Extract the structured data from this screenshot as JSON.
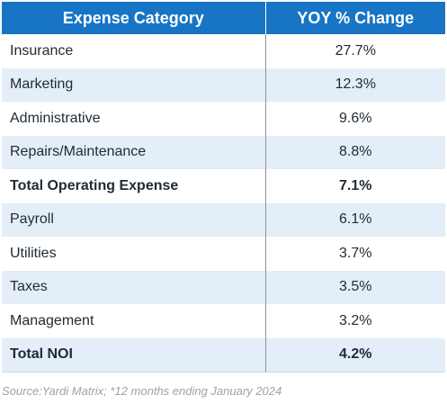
{
  "chart_data": {
    "type": "table",
    "columns": [
      "Expense Category",
      "YOY % Change"
    ],
    "rows": [
      {
        "category": "Insurance",
        "value": "27.7%",
        "bold": false
      },
      {
        "category": "Marketing",
        "value": "12.3%",
        "bold": false
      },
      {
        "category": "Administrative",
        "value": "9.6%",
        "bold": false
      },
      {
        "category": "Repairs/Maintenance",
        "value": "8.8%",
        "bold": false
      },
      {
        "category": "Total Operating Expense",
        "value": "7.1%",
        "bold": true
      },
      {
        "category": "Payroll",
        "value": "6.1%",
        "bold": false
      },
      {
        "category": "Utilities",
        "value": "3.7%",
        "bold": false
      },
      {
        "category": "Taxes",
        "value": "3.5%",
        "bold": false
      },
      {
        "category": "Management",
        "value": "3.2%",
        "bold": false
      },
      {
        "category": "Total NOI",
        "value": "4.2%",
        "bold": true
      }
    ],
    "source": "Source:Yardi Matrix; *12 months ending January 2024"
  },
  "colors": {
    "header_bg": "#1874c4",
    "header_text": "#ffffff",
    "stripe": "#e3eef8"
  }
}
